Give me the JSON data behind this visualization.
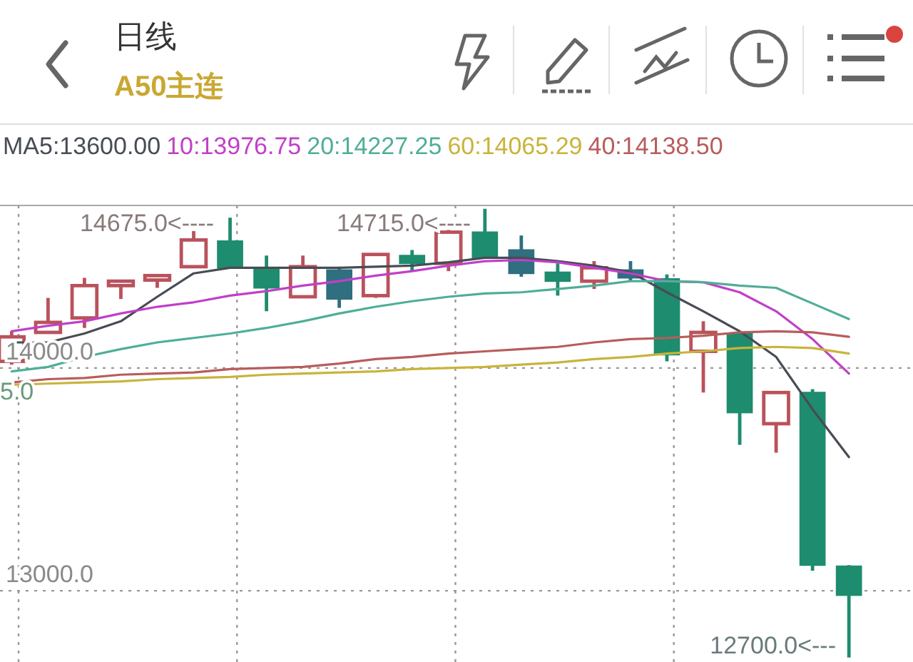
{
  "chart_data": {
    "type": "candlestick",
    "title": "日线",
    "subtitle": "A50主连",
    "categories": [
      null,
      null,
      null,
      null,
      null,
      null,
      null,
      null,
      null,
      null,
      null,
      null,
      null,
      null,
      null,
      null,
      null,
      null,
      null,
      null,
      null,
      null,
      null,
      null
    ],
    "ohlc": [
      [
        14030,
        14165,
        14015,
        14140
      ],
      [
        14160,
        14315,
        14155,
        14205
      ],
      [
        14225,
        14405,
        14180,
        14370
      ],
      [
        14370,
        14395,
        14310,
        14390
      ],
      [
        14395,
        14420,
        14360,
        14415
      ],
      [
        14455,
        14615,
        14450,
        14575
      ],
      [
        14570,
        14675,
        14445,
        14450
      ],
      [
        14450,
        14505,
        14255,
        14360
      ],
      [
        14320,
        14505,
        14315,
        14455
      ],
      [
        14440,
        14455,
        14270,
        14310
      ],
      [
        14325,
        14515,
        14315,
        14510
      ],
      [
        14505,
        14530,
        14435,
        14470
      ],
      [
        14470,
        14620,
        14435,
        14610
      ],
      [
        14610,
        14715,
        14490,
        14495
      ],
      [
        14530,
        14595,
        14410,
        14425
      ],
      [
        14430,
        14470,
        14325,
        14390
      ],
      [
        14390,
        14480,
        14355,
        14450
      ],
      [
        14440,
        14480,
        14390,
        14405
      ],
      [
        14400,
        14420,
        14030,
        14060
      ],
      [
        14075,
        14210,
        13890,
        14160
      ],
      [
        14155,
        14160,
        13655,
        13800
      ],
      [
        13750,
        13895,
        13620,
        13890
      ],
      [
        13890,
        13905,
        13090,
        13115
      ],
      [
        13110,
        13115,
        12700,
        12980
      ]
    ],
    "colors": [
      "#b9525c",
      "#b9525c",
      "#b9525c",
      "#b9525c",
      "#b9525c",
      "#b9525c",
      "#1e8c6e",
      "#1e8c6e",
      "#b9525c",
      "#2f6f7f",
      "#b9525c",
      "#1e8c6e",
      "#b9525c",
      "#1e8c6e",
      "#2f6f7f",
      "#1e8c6e",
      "#b9525c",
      "#2f6f7f",
      "#1e8c6e",
      "#b9525c",
      "#1e8c6e",
      "#b9525c",
      "#1e8c6e",
      "#1e8c6e"
    ],
    "series": [
      {
        "name": "MA5:13600.00",
        "type": "line",
        "color": "#474c55",
        "values": [
          14115,
          14115,
          14155,
          14210,
          14320,
          14425,
          14450,
          14450,
          14450,
          14450,
          14455,
          14460,
          14475,
          14495,
          14495,
          14480,
          14460,
          14430,
          14340,
          14255,
          14165,
          14050,
          13815,
          13600
        ]
      },
      {
        "name": "10:13976.75",
        "type": "line",
        "color": "#c040c8",
        "values": [
          14165,
          14190,
          14210,
          14245,
          14275,
          14295,
          14325,
          14345,
          14370,
          14390,
          14415,
          14435,
          14460,
          14480,
          14485,
          14475,
          14450,
          14425,
          14390,
          14385,
          14340,
          14255,
          14130,
          13975
        ]
      },
      {
        "name": "20:14227.25",
        "type": "line",
        "color": "#4fae98",
        "values": [
          13985,
          14005,
          14050,
          14085,
          14115,
          14135,
          14155,
          14180,
          14210,
          14245,
          14275,
          14300,
          14320,
          14335,
          14340,
          14355,
          14370,
          14390,
          14390,
          14385,
          14370,
          14360,
          14290,
          14220
        ]
      },
      {
        "name": "60:14065.29",
        "type": "line",
        "color": "#c8b43c",
        "values": [
          13925,
          13930,
          13935,
          13940,
          13950,
          13955,
          13960,
          13970,
          13975,
          13980,
          13985,
          13995,
          14000,
          14005,
          14015,
          14025,
          14040,
          14050,
          14065,
          14075,
          14090,
          14095,
          14090,
          14065
        ]
      },
      {
        "name": "40:14138.50",
        "type": "line",
        "color": "#b85c5c",
        "values": [
          13935,
          13950,
          13955,
          13970,
          13975,
          13980,
          13995,
          14000,
          14005,
          14020,
          14040,
          14050,
          14065,
          14075,
          14085,
          14095,
          14115,
          14130,
          14135,
          14145,
          14160,
          14165,
          14160,
          14140
        ]
      }
    ],
    "ylim": [
      12680,
      14730
    ],
    "yticks": [
      {
        "value": 14000,
        "label": "14000.0"
      },
      {
        "value": 13000,
        "label": "13000.0"
      }
    ],
    "grid": true,
    "legend": "top",
    "tick_labels": "y",
    "annotations": [
      "14675.0<----",
      "14715.0<----",
      "12700.0<---",
      "5.0"
    ]
  }
}
